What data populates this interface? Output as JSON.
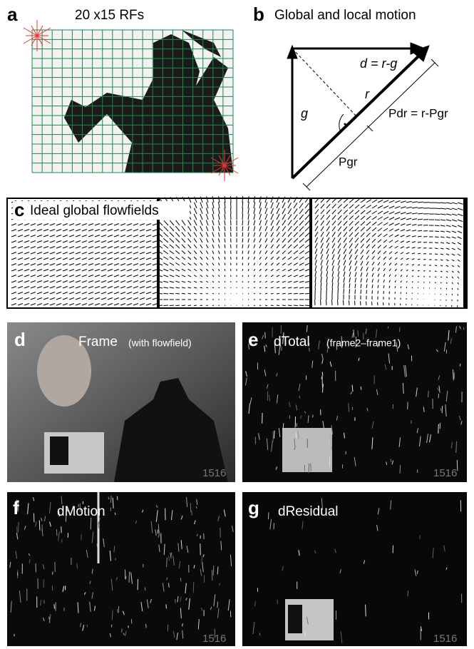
{
  "panels": [
    {
      "letter": "a",
      "title": "20 x15 RFs"
    },
    {
      "letter": "b",
      "title": "Global and local motion",
      "labels": {
        "d": "d = r-g",
        "r": "r",
        "g": "g",
        "pdr": "Pdr = r-Pgr",
        "pgr": "Pgr"
      }
    },
    {
      "letter": "c",
      "title": "Ideal global flowfields"
    },
    {
      "letter": "d",
      "title": "Frame",
      "subtitle": "(with flowfield)",
      "frame": "1516"
    },
    {
      "letter": "e",
      "title": "dTotal",
      "subtitle": "(frame2–frame1)",
      "frame": "1516"
    },
    {
      "letter": "f",
      "title": "dMotion",
      "frame": "1516"
    },
    {
      "letter": "g",
      "title": "dResidual",
      "frame": "1516"
    }
  ]
}
